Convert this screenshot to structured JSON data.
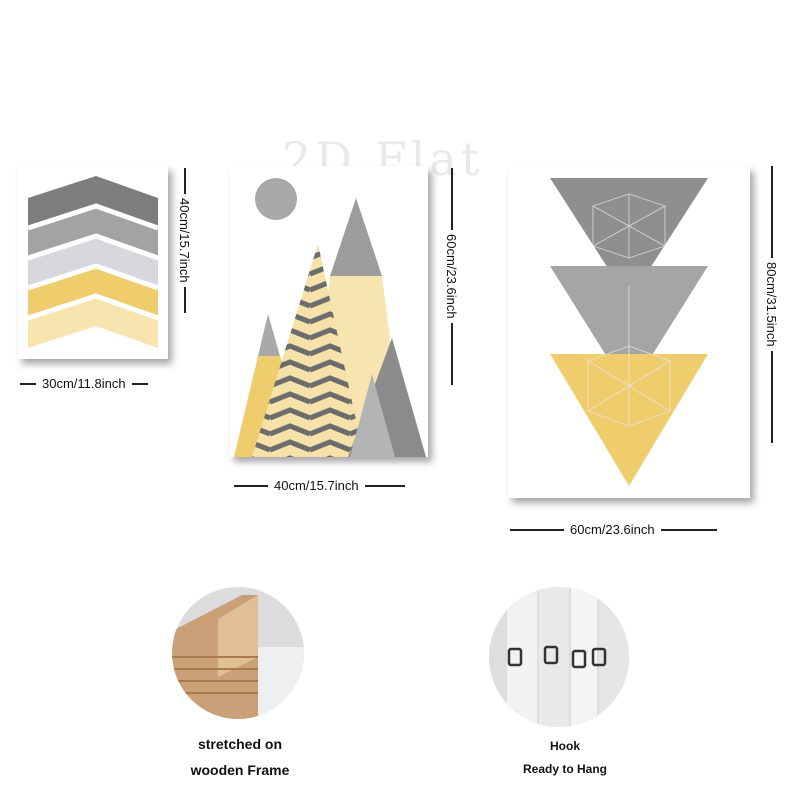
{
  "watermark": "2D Flat",
  "panels": {
    "small": {
      "width_label": "30cm/11.8inch",
      "height_label": "40cm/15.7inch"
    },
    "medium": {
      "width_label": "40cm/15.7inch",
      "height_label": "60cm/23.6inch"
    },
    "large": {
      "width_label": "60cm/23.6inch",
      "height_label": "80cm/31.5inch"
    }
  },
  "features": [
    {
      "line1": "stretched on",
      "line2": "wooden Frame"
    },
    {
      "line1": "Hook",
      "line2": "Ready to Hang"
    }
  ],
  "colors": {
    "yellow": "#f2cf6e",
    "pale_yellow": "#f8e6b0",
    "grey": "#9a9a9a",
    "dark_grey": "#7a7a7a",
    "light_grey": "#d5d5dc"
  }
}
